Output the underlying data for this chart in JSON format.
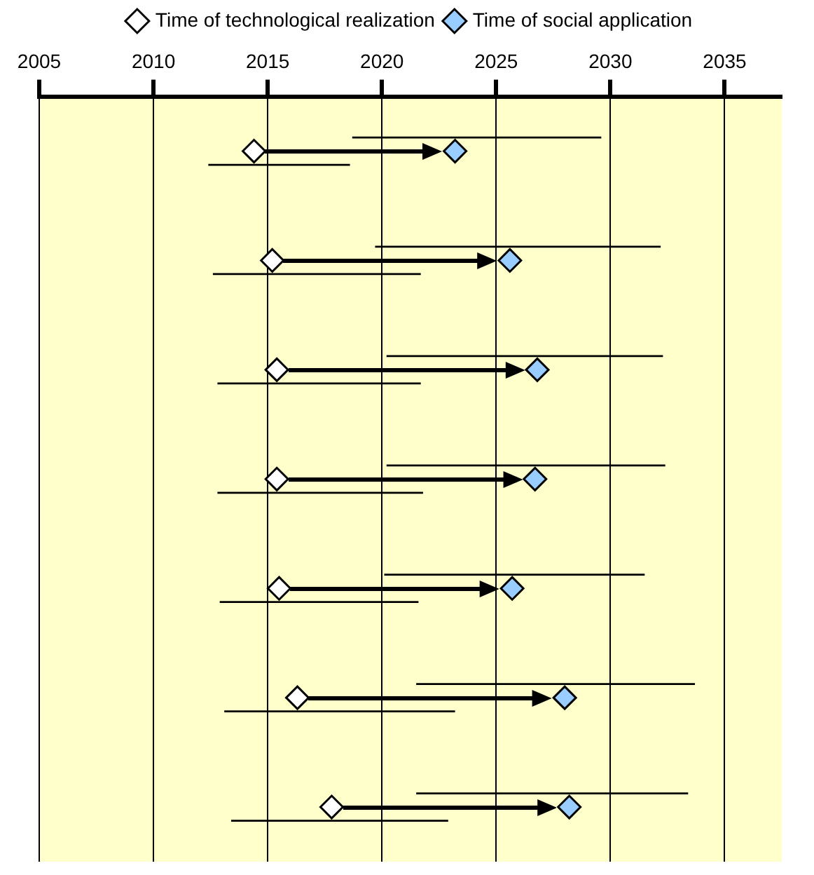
{
  "chart_data": {
    "type": "scatter",
    "orientation": "horizontal",
    "categories": [
      null,
      null,
      null,
      null,
      null,
      null,
      null
    ],
    "xlim": [
      2005,
      2037.5
    ],
    "xticks": [
      2005,
      2010,
      2015,
      2020,
      2025,
      2030,
      2035
    ],
    "grid": "x",
    "legend": "top",
    "marker": "diamond",
    "series": [
      {
        "type": "bar",
        "color": "#000000",
        "base": [
          2018.7,
          2019.7,
          2020.2,
          2020.2,
          2020.1,
          2021.5,
          2021.5
        ],
        "values": [
          10.9,
          12.5,
          12.1,
          12.2,
          11.4,
          12.2,
          11.9
        ]
      },
      {
        "type": "bar",
        "color": "#000000",
        "base": [
          2012.4,
          2012.6,
          2012.8,
          2012.8,
          2012.9,
          2013.1,
          2013.4
        ],
        "values": [
          6.2,
          9.1,
          8.9,
          9.0,
          8.7,
          10.1,
          9.5
        ]
      },
      {
        "name": "Time of technological realization",
        "color": "#ffffff",
        "values": [
          2014.4,
          2015.2,
          2015.4,
          2015.4,
          2015.5,
          2016.3,
          2017.8
        ]
      },
      {
        "name": "Time of social application",
        "color": "#99ccff",
        "values": [
          2023.2,
          2025.6,
          2026.8,
          2026.7,
          2025.7,
          2028.0,
          2028.2
        ]
      }
    ]
  }
}
